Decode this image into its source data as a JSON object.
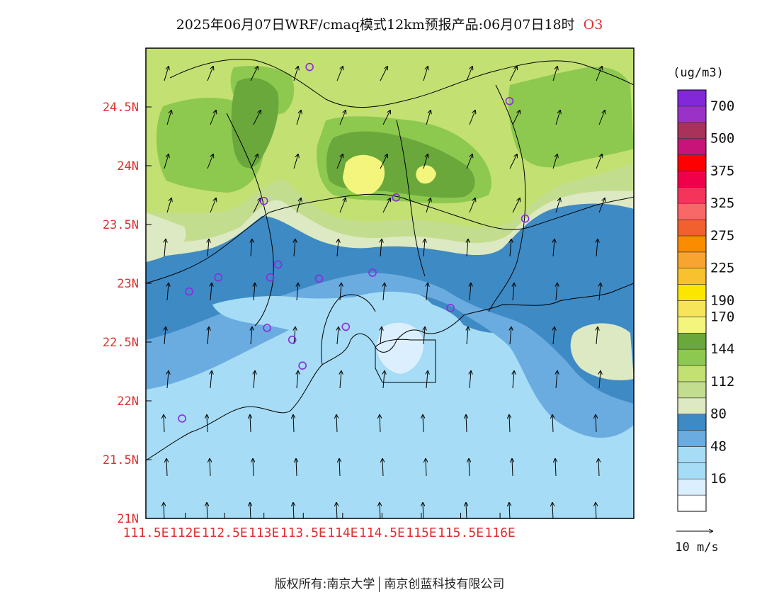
{
  "title": {
    "text": "2025年06月07日WRF/cmaq模式12km预报产品:06月07日18时",
    "species": "O3"
  },
  "axes": {
    "lat_labels": [
      "21N",
      "21.5N",
      "22N",
      "22.5N",
      "23N",
      "23.5N",
      "24N",
      "24.5N"
    ],
    "lon_labels": [
      "111.5E",
      "112E",
      "112.5E",
      "113E",
      "113.5E",
      "114E",
      "114.5E",
      "115E",
      "115.5E",
      "116E"
    ],
    "label_color": "#e03030"
  },
  "legend": {
    "unit": "(ug/m3)",
    "scale": [
      {
        "color": "#ffffff",
        "label": ""
      },
      {
        "color": "#dcefff",
        "label": "16"
      },
      {
        "color": "#a6dcf5",
        "label": ""
      },
      {
        "color": "#a6dcf5",
        "label": "48"
      },
      {
        "color": "#6aace0",
        "label": ""
      },
      {
        "color": "#3e8ac4",
        "label": "80"
      },
      {
        "color": "#dde9c2",
        "label": ""
      },
      {
        "color": "#c3dd8f",
        "label": "112"
      },
      {
        "color": "#c3e073",
        "label": ""
      },
      {
        "color": "#8ec94f",
        "label": "144"
      },
      {
        "color": "#6aa83c",
        "label": ""
      },
      {
        "color": "#f4f57c",
        "label": "170"
      },
      {
        "color": "#f6e55a",
        "label": "190"
      },
      {
        "color": "#fbe600",
        "label": ""
      },
      {
        "color": "#f8c22e",
        "label": "225"
      },
      {
        "color": "#f7a530",
        "label": ""
      },
      {
        "color": "#fb8c00",
        "label": "275"
      },
      {
        "color": "#f0612f",
        "label": ""
      },
      {
        "color": "#f96868",
        "label": "325"
      },
      {
        "color": "#f5345b",
        "label": ""
      },
      {
        "color": "#f0004a",
        "label": "375"
      },
      {
        "color": "#ff0000",
        "label": ""
      },
      {
        "color": "#c81478",
        "label": "500"
      },
      {
        "color": "#a8325a",
        "label": ""
      },
      {
        "color": "#9b32c8",
        "label": "700"
      },
      {
        "color": "#8228d8",
        "label": ""
      }
    ]
  },
  "wind_reference": {
    "label": "10 m/s"
  },
  "stations": [
    {
      "lon": 113.58,
      "lat": 24.84
    },
    {
      "lon": 116.12,
      "lat": 24.55
    },
    {
      "lon": 113.0,
      "lat": 23.7
    },
    {
      "lon": 114.68,
      "lat": 23.73
    },
    {
      "lon": 116.32,
      "lat": 23.55
    },
    {
      "lon": 113.18,
      "lat": 23.16
    },
    {
      "lon": 112.42,
      "lat": 23.05
    },
    {
      "lon": 113.08,
      "lat": 23.05
    },
    {
      "lon": 113.7,
      "lat": 23.04
    },
    {
      "lon": 114.38,
      "lat": 23.09
    },
    {
      "lon": 112.05,
      "lat": 22.93
    },
    {
      "lon": 115.37,
      "lat": 22.79
    },
    {
      "lon": 113.04,
      "lat": 22.62
    },
    {
      "lon": 114.04,
      "lat": 22.63
    },
    {
      "lon": 113.36,
      "lat": 22.52
    },
    {
      "lon": 113.49,
      "lat": 22.3
    },
    {
      "lon": 111.96,
      "lat": 21.85
    }
  ],
  "footer": {
    "left": "版权所有:南京大学",
    "right": "南京创蓝科技有限公司"
  }
}
